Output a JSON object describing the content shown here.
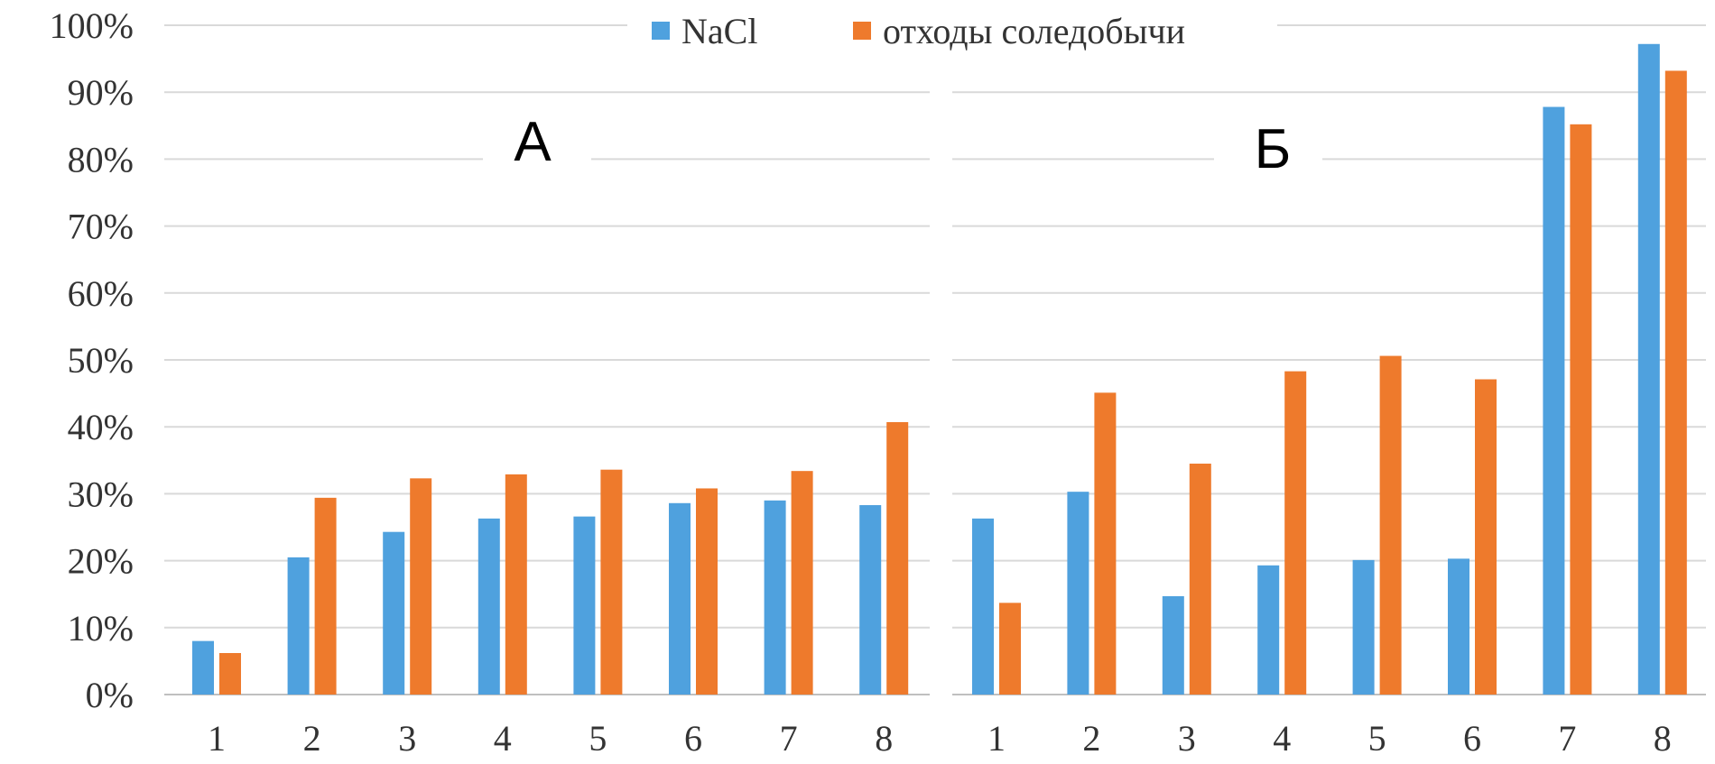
{
  "chart_data": {
    "type": "bar",
    "legend": {
      "placement": "top",
      "entries": [
        {
          "name": "NaCl",
          "color": "#4fa1de"
        },
        {
          "name": "отходы соледобычи",
          "color": "#ee7a2c"
        }
      ]
    },
    "y_axis": {
      "ylim": [
        0,
        100
      ],
      "ticks": [
        0,
        10,
        20,
        30,
        40,
        50,
        60,
        70,
        80,
        90,
        100
      ],
      "tick_labels": [
        "0%",
        "10%",
        "20%",
        "30%",
        "40%",
        "50%",
        "60%",
        "70%",
        "80%",
        "90%",
        "100%"
      ]
    },
    "grid": true,
    "panels": [
      {
        "title": "А",
        "categories": [
          "1",
          "2",
          "3",
          "4",
          "5",
          "6",
          "7",
          "8"
        ],
        "series": [
          {
            "name": "NaCl",
            "values": [
              8,
              20.5,
              24.3,
              26.3,
              26.6,
              28.6,
              29,
              28.3
            ]
          },
          {
            "name": "отходы соледобычи",
            "values": [
              6.2,
              29.4,
              32.3,
              32.9,
              33.6,
              30.8,
              33.4,
              40.7
            ]
          }
        ]
      },
      {
        "title": "Б",
        "categories": [
          "1",
          "2",
          "3",
          "4",
          "5",
          "6",
          "7",
          "8"
        ],
        "series": [
          {
            "name": "NaCl",
            "values": [
              26.3,
              30.3,
              14.7,
              19.3,
              20.1,
              20.3,
              87.8,
              97.2
            ]
          },
          {
            "name": "отходы соледобычи",
            "values": [
              13.7,
              45.1,
              34.5,
              48.3,
              50.6,
              47.1,
              85.2,
              93.2
            ]
          }
        ]
      }
    ]
  }
}
